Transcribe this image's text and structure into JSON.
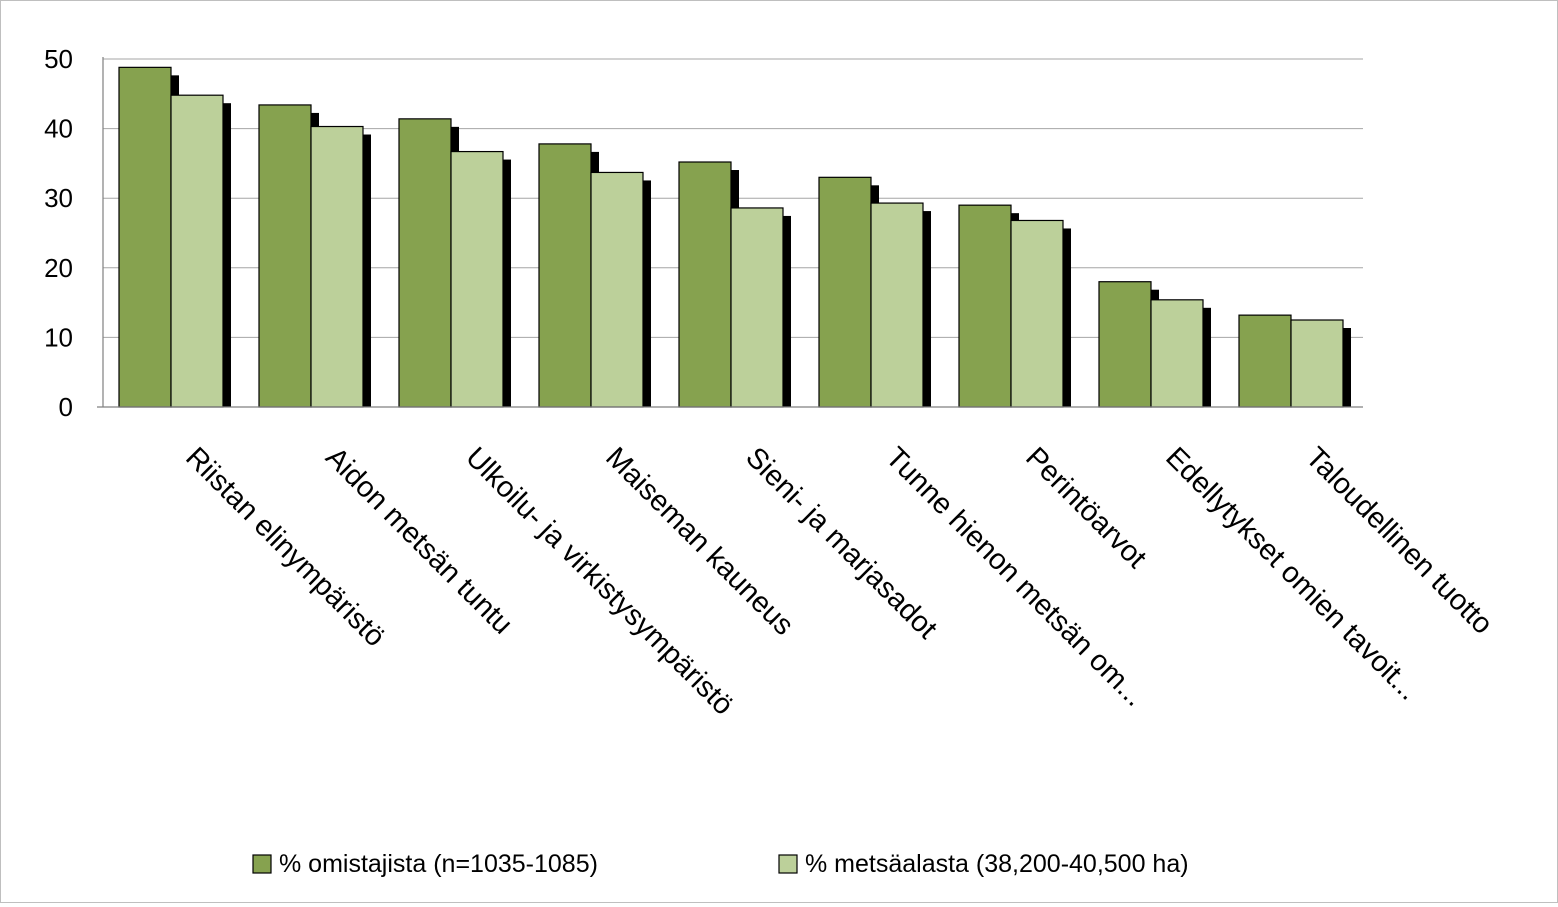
{
  "chart_data": {
    "type": "bar",
    "title": "",
    "xlabel": "",
    "ylabel": "",
    "ylim": [
      0,
      50
    ],
    "yticks": [
      0,
      10,
      20,
      30,
      40,
      50
    ],
    "grid": true,
    "legend_position": "bottom",
    "categories": [
      "Riistan elinympäristö",
      "Aidon metsän tuntu",
      "Ulkoilu- ja virkistysympäristö",
      "Maiseman kauneus",
      "Sieni- ja marjasadot",
      "Tunne hienon metsän om...",
      "Perintöarvot",
      "Edellytykset omien tavoit...",
      "Taloudellinen tuotto"
    ],
    "series": [
      {
        "name": "% omistajista (n=1035-1085)",
        "color": "#86a24f",
        "values": [
          48.8,
          43.4,
          41.4,
          37.8,
          35.2,
          33.0,
          29.0,
          18.0,
          13.2
        ]
      },
      {
        "name": "% metsäalasta (38,200-40,500 ha)",
        "color": "#bcd09a",
        "values": [
          44.8,
          40.3,
          36.7,
          33.7,
          28.6,
          29.3,
          26.8,
          15.4,
          12.5
        ]
      }
    ]
  }
}
